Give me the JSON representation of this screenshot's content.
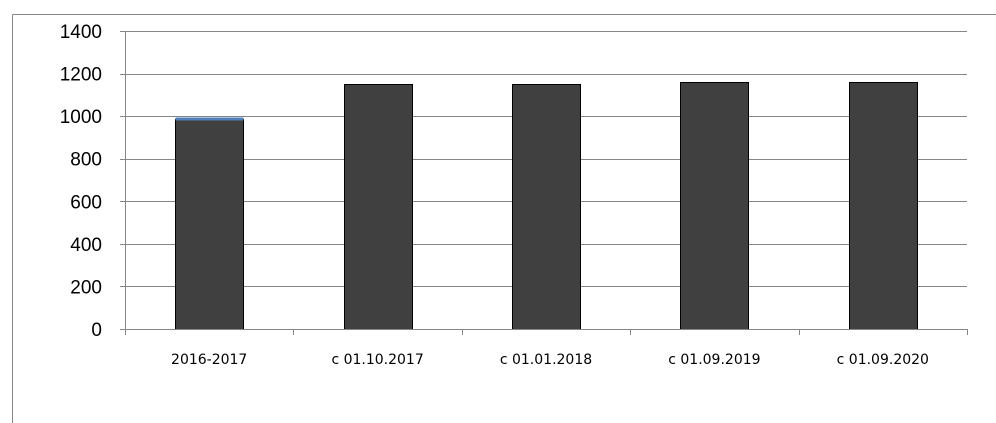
{
  "chart_data": {
    "type": "bar",
    "categories": [
      "2016-2017",
      "с 01.10.2017",
      "с 01.01.2018",
      "с 01.09.2019",
      "с 01.09.2020"
    ],
    "values": [
      985,
      1152,
      1152,
      1160,
      1160
    ],
    "highlight": [
      {
        "category": "2016-2017",
        "value": 985,
        "color": "#4F81BD"
      }
    ],
    "yticks": [
      0,
      200,
      400,
      600,
      800,
      1000,
      1200,
      1400
    ],
    "ylim": [
      0,
      1400
    ],
    "grid": true,
    "legend": "none",
    "colors": {
      "bar_fill": "#404040",
      "bar_stroke": "#000000",
      "grid": "#868686",
      "axis": "#868686",
      "frame": "#868686",
      "text": "#000000"
    }
  }
}
